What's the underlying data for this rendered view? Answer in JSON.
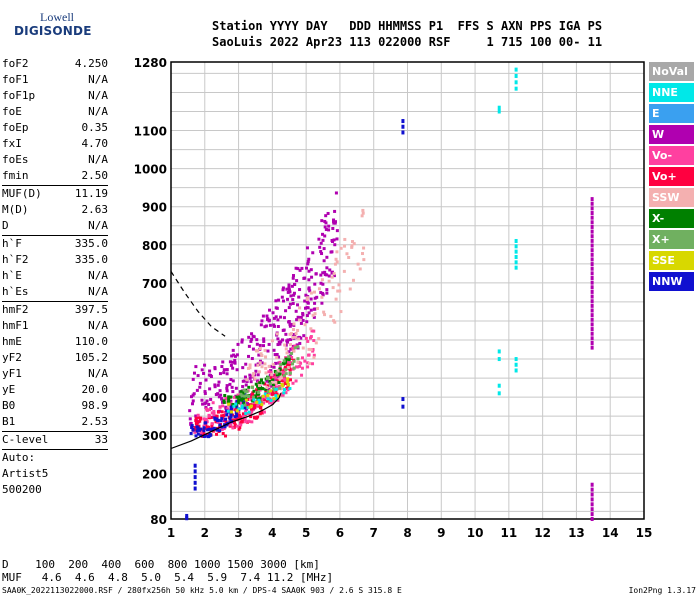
{
  "logo": {
    "line1": "Lowell",
    "line2": "DIGISONDE"
  },
  "header": {
    "row1": "Station YYYY DAY   DDD HHMMSS P1  FFS S AXN PPS IGA PS",
    "row2": "SaoLuis 2022 Apr23 113 022000 RSF     1 715 100 00- 11"
  },
  "params": [
    [
      {
        "name": "foF2",
        "value": "4.250"
      },
      {
        "name": "foF1",
        "value": "N/A"
      },
      {
        "name": "foF1p",
        "value": "N/A"
      },
      {
        "name": "foE",
        "value": "N/A"
      },
      {
        "name": "foEp",
        "value": "0.35"
      },
      {
        "name": "fxI",
        "value": "4.70"
      },
      {
        "name": "foEs",
        "value": "N/A"
      },
      {
        "name": "fmin",
        "value": "2.50"
      }
    ],
    [
      {
        "name": "MUF(D)",
        "value": "11.19"
      },
      {
        "name": "M(D)",
        "value": "2.63"
      },
      {
        "name": "D",
        "value": "N/A"
      }
    ],
    [
      {
        "name": "h`F",
        "value": "335.0"
      },
      {
        "name": "h`F2",
        "value": "335.0"
      },
      {
        "name": "h`E",
        "value": "N/A"
      },
      {
        "name": "h`Es",
        "value": "N/A"
      }
    ],
    [
      {
        "name": "hmF2",
        "value": "397.5"
      },
      {
        "name": "hmF1",
        "value": "N/A"
      },
      {
        "name": "hmE",
        "value": "110.0"
      },
      {
        "name": "yF2",
        "value": "105.2"
      },
      {
        "name": "yF1",
        "value": "N/A"
      },
      {
        "name": "yE",
        "value": "20.0"
      },
      {
        "name": "B0",
        "value": "98.9"
      },
      {
        "name": "B1",
        "value": "2.53"
      }
    ],
    [
      {
        "name": "C-level",
        "value": "33"
      }
    ]
  ],
  "autoscaling": {
    "l1": "Auto:",
    "l2": "Artist5",
    "l3": "500200"
  },
  "footer": {
    "d_row": "D    100  200  400  600  800 1000 1500 3000 [km]",
    "muf_row": "MUF   4.6  4.6  4.8  5.0  5.4  5.9  7.4 11.2 [MHz]"
  },
  "bottom_line": "SAA0K_2022113022000.RSF / 280fx256h 50 kHz 5.0 km / DPS-4 SAA0K 903 / 2.6 S 315.8 E",
  "version": "Ion2Png 1.3.17",
  "legend": [
    {
      "label": "NoVal",
      "color": "#a8a8a8"
    },
    {
      "label": "NNE",
      "color": "#00e8e8"
    },
    {
      "label": "E",
      "color": "#3aa0f0"
    },
    {
      "label": "W",
      "color": "#b000b0"
    },
    {
      "label": "Vo-",
      "color": "#ff40a0"
    },
    {
      "label": "Vo+",
      "color": "#ff0040"
    },
    {
      "label": "SSW",
      "color": "#f4b0b0"
    },
    {
      "label": "X-",
      "color": "#008000"
    },
    {
      "label": "X+",
      "color": "#70b060"
    },
    {
      "label": "SSE",
      "color": "#d8d800"
    },
    {
      "label": "NNW",
      "color": "#1010d0"
    }
  ],
  "chart_data": {
    "type": "scatter",
    "xlim": [
      1,
      15
    ],
    "ylim": [
      80,
      1280
    ],
    "x_ticks": [
      1,
      2,
      3,
      4,
      5,
      6,
      7,
      8,
      9,
      10,
      11,
      12,
      13,
      14,
      15
    ],
    "y_ticks": [
      80,
      200,
      300,
      400,
      500,
      600,
      700,
      800,
      900,
      1000,
      1100,
      1280
    ],
    "grid": true,
    "traces": [
      {
        "name": "profile",
        "style": "solid",
        "points": [
          [
            1,
            265
          ],
          [
            1.6,
            285
          ],
          [
            2.2,
            310
          ],
          [
            2.8,
            335
          ],
          [
            3.3,
            350
          ],
          [
            3.7,
            365
          ],
          [
            4,
            380
          ],
          [
            4.2,
            398
          ],
          [
            4.25,
            410
          ]
        ]
      },
      {
        "name": "dashed",
        "style": "dashed",
        "points": [
          [
            1,
            730
          ],
          [
            1.4,
            675
          ],
          [
            1.8,
            625
          ],
          [
            2.2,
            585
          ],
          [
            2.6,
            560
          ]
        ]
      }
    ],
    "clusters": [
      {
        "color": "#b000b0",
        "x": [
          1.5,
          5.9
        ],
        "y": [
          330,
          960
        ],
        "count": 420
      },
      {
        "color": "#ff0040",
        "x": [
          1.6,
          4.6
        ],
        "y": [
          300,
          520
        ],
        "count": 220
      },
      {
        "color": "#ff40a0",
        "x": [
          1.6,
          5.2
        ],
        "y": [
          310,
          600
        ],
        "count": 160
      },
      {
        "color": "#1010d0",
        "x": [
          1.5,
          3.2
        ],
        "y": [
          300,
          420
        ],
        "count": 80
      },
      {
        "color": "#008000",
        "x": [
          2.5,
          4.5
        ],
        "y": [
          380,
          520
        ],
        "count": 70
      },
      {
        "color": "#f4b0b0",
        "x": [
          3.2,
          6.7
        ],
        "y": [
          420,
          940
        ],
        "count": 120
      },
      {
        "color": "#70b060",
        "x": [
          3.0,
          4.8
        ],
        "y": [
          380,
          560
        ],
        "count": 40
      },
      {
        "color": "#00e8e8",
        "x": [
          2.5,
          4.5
        ],
        "y": [
          360,
          460
        ],
        "count": 25
      },
      {
        "color": "#d8d800",
        "x": [
          2.4,
          4.5
        ],
        "y": [
          360,
          460
        ],
        "count": 20
      }
    ],
    "columns": [
      {
        "x": 1.7,
        "y": [
          160,
          220
        ],
        "color": "#1010d0"
      },
      {
        "x": 1.45,
        "y": [
          82,
          88
        ],
        "color": "#1010d0"
      },
      {
        "x": 7.85,
        "y": [
          375,
          395
        ],
        "color": "#1010d0"
      },
      {
        "x": 7.85,
        "y": [
          1095,
          1125
        ],
        "color": "#1010d0"
      },
      {
        "x": 10.7,
        "y": [
          410,
          430
        ],
        "color": "#00e8e8"
      },
      {
        "x": 10.7,
        "y": [
          500,
          520
        ],
        "color": "#00e8e8"
      },
      {
        "x": 10.7,
        "y": [
          1150,
          1160
        ],
        "color": "#00e8e8"
      },
      {
        "x": 11.2,
        "y": [
          470,
          500
        ],
        "color": "#00e8e8"
      },
      {
        "x": 11.2,
        "y": [
          740,
          810
        ],
        "color": "#00e8e8"
      },
      {
        "x": 11.2,
        "y": [
          1210,
          1260
        ],
        "color": "#00e8e8"
      },
      {
        "x": 13.45,
        "y": [
          530,
          920
        ],
        "color": "#b000b0"
      },
      {
        "x": 13.45,
        "y": [
          80,
          170
        ],
        "color": "#b000b0"
      }
    ]
  }
}
